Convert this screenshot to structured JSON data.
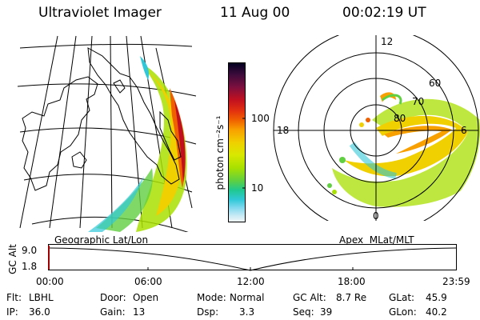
{
  "header": {
    "instrument": "Ultraviolet Imager",
    "date": "11 Aug 00",
    "time": "00:02:19 UT"
  },
  "colorbar": {
    "label": "photon cm⁻²s⁻¹",
    "ticks": [
      "100",
      "10"
    ],
    "colors": [
      "#000020",
      "#3a0b3a",
      "#7a0f3f",
      "#c01020",
      "#e23010",
      "#f06000",
      "#f8a000",
      "#f0d000",
      "#d8e800",
      "#a8e000",
      "#60d040",
      "#20c890",
      "#30c8d8",
      "#80d8ee",
      "#c8eaf5",
      "#f2f6f8"
    ]
  },
  "left_map": {
    "label": "Geographic Lat/Lon"
  },
  "right_polar": {
    "label": "Apex  MLat/MLT",
    "mlt_labels": [
      "12",
      "18",
      "6",
      "0"
    ],
    "mlat_labels": [
      "60",
      "70",
      "80"
    ]
  },
  "altitude_strip": {
    "axis_label": "GC Alt",
    "y_ticks": [
      "9.0",
      "1.8"
    ],
    "x_ticks": [
      "00:00",
      "06:00",
      "12:00",
      "18:00",
      "23:59"
    ]
  },
  "status": {
    "filter_label": "Flt:",
    "filter_value": "LBHL",
    "ip_label": "IP:",
    "ip_value": "36.0",
    "door_label": "Door:",
    "door_value": "Open",
    "gain_label": "Gain:",
    "gain_value": "13",
    "mode_label": "Mode:",
    "mode_value": "Normal",
    "dsp_label": "Dsp:",
    "dsp_value": "3.3",
    "gcalt_label": "GC Alt:",
    "gcalt_value": "8.7 Re",
    "seq_label": "Seq:",
    "seq_value": "39",
    "glat_label": "GLat:",
    "glat_value": "45.9",
    "glon_label": "GLon:",
    "glon_value": "40.2"
  }
}
